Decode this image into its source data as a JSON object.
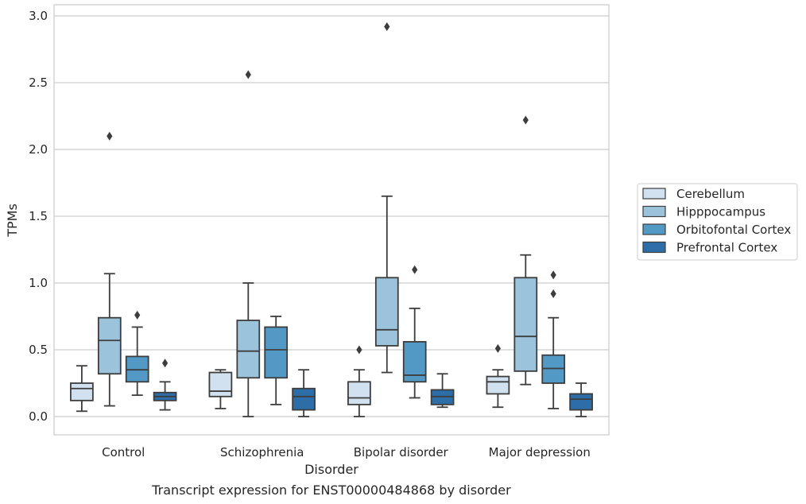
{
  "chart_data": {
    "type": "box",
    "title": "Transcript expression for ENST00000484868 by disorder",
    "xlabel": "Disorder",
    "ylabel": "TPMs",
    "ylim": [
      -0.14,
      3.08
    ],
    "yticks": [
      "0.0",
      "0.5",
      "1.0",
      "1.5",
      "2.0",
      "2.5",
      "3.0"
    ],
    "grid": "horizontal",
    "legend_position": "right",
    "categories": [
      "Control",
      "Schizophrenia",
      "Bipolar disorder",
      "Major depression"
    ],
    "series": [
      {
        "name": "Cerebellum",
        "color": "#d2e1f0",
        "boxes": [
          {
            "whislo": 0.04,
            "q1": 0.12,
            "med": 0.21,
            "q3": 0.25,
            "whishi": 0.38,
            "fliers": []
          },
          {
            "whislo": 0.06,
            "q1": 0.15,
            "med": 0.19,
            "q3": 0.33,
            "whishi": 0.35,
            "fliers": []
          },
          {
            "whislo": 0.0,
            "q1": 0.09,
            "med": 0.14,
            "q3": 0.26,
            "whishi": 0.35,
            "fliers": [
              0.5
            ]
          },
          {
            "whislo": 0.07,
            "q1": 0.17,
            "med": 0.26,
            "q3": 0.3,
            "whishi": 0.35,
            "fliers": [
              0.51
            ]
          }
        ]
      },
      {
        "name": "Hipppocampus",
        "color": "#9bc3dc",
        "boxes": [
          {
            "whislo": 0.08,
            "q1": 0.32,
            "med": 0.57,
            "q3": 0.74,
            "whishi": 1.07,
            "fliers": [
              2.1
            ]
          },
          {
            "whislo": 0.0,
            "q1": 0.29,
            "med": 0.49,
            "q3": 0.72,
            "whishi": 1.0,
            "fliers": [
              2.56
            ]
          },
          {
            "whislo": 0.33,
            "q1": 0.53,
            "med": 0.65,
            "q3": 1.04,
            "whishi": 1.65,
            "fliers": [
              2.92
            ]
          },
          {
            "whislo": 0.24,
            "q1": 0.34,
            "med": 0.6,
            "q3": 1.04,
            "whishi": 1.21,
            "fliers": [
              2.22
            ]
          }
        ]
      },
      {
        "name": "Orbitofontal Cortex",
        "color": "#5399c6",
        "boxes": [
          {
            "whislo": 0.16,
            "q1": 0.26,
            "med": 0.35,
            "q3": 0.45,
            "whishi": 0.67,
            "fliers": [
              0.76
            ]
          },
          {
            "whislo": 0.09,
            "q1": 0.29,
            "med": 0.5,
            "q3": 0.67,
            "whishi": 0.75,
            "fliers": []
          },
          {
            "whislo": 0.14,
            "q1": 0.26,
            "med": 0.31,
            "q3": 0.56,
            "whishi": 0.81,
            "fliers": [
              1.1
            ]
          },
          {
            "whislo": 0.06,
            "q1": 0.25,
            "med": 0.36,
            "q3": 0.46,
            "whishi": 0.74,
            "fliers": [
              0.92,
              1.06
            ]
          }
        ]
      },
      {
        "name": "Prefrontal Cortex",
        "color": "#2d6ea8",
        "boxes": [
          {
            "whislo": 0.05,
            "q1": 0.12,
            "med": 0.15,
            "q3": 0.18,
            "whishi": 0.26,
            "fliers": [
              0.4
            ]
          },
          {
            "whislo": 0.0,
            "q1": 0.05,
            "med": 0.15,
            "q3": 0.21,
            "whishi": 0.35,
            "fliers": []
          },
          {
            "whislo": 0.07,
            "q1": 0.09,
            "med": 0.15,
            "q3": 0.2,
            "whishi": 0.32,
            "fliers": []
          },
          {
            "whislo": 0.0,
            "q1": 0.05,
            "med": 0.13,
            "q3": 0.17,
            "whishi": 0.25,
            "fliers": []
          }
        ]
      }
    ]
  }
}
